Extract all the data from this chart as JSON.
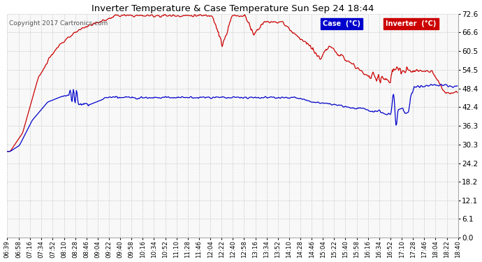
{
  "title": "Inverter Temperature & Case Temperature Sun Sep 24 18:44",
  "copyright": "Copyright 2017 Cartronics.com",
  "bg_color": "#ffffff",
  "plot_bg_color": "#f8f8f8",
  "grid_color": "#cccccc",
  "y_ticks": [
    0.0,
    6.1,
    12.1,
    18.2,
    24.2,
    30.3,
    36.3,
    42.4,
    48.4,
    54.5,
    60.5,
    66.6,
    72.6
  ],
  "ylim": [
    0.0,
    72.6
  ],
  "legend_bg_case": "#0000cc",
  "legend_bg_inv": "#cc0000",
  "line_case_color": "#0000cc",
  "line_inv_color": "#cc0000",
  "x_labels": [
    "06:39",
    "06:58",
    "07:16",
    "07:34",
    "07:52",
    "08:10",
    "08:28",
    "08:46",
    "09:04",
    "09:22",
    "09:40",
    "09:58",
    "10:16",
    "10:34",
    "10:52",
    "11:10",
    "11:28",
    "11:46",
    "12:04",
    "12:22",
    "12:40",
    "12:58",
    "13:16",
    "13:34",
    "13:52",
    "14:10",
    "14:28",
    "14:46",
    "15:04",
    "15:22",
    "15:40",
    "15:58",
    "16:16",
    "16:34",
    "16:52",
    "17:10",
    "17:28",
    "17:46",
    "18:04",
    "18:22",
    "18:40"
  ]
}
